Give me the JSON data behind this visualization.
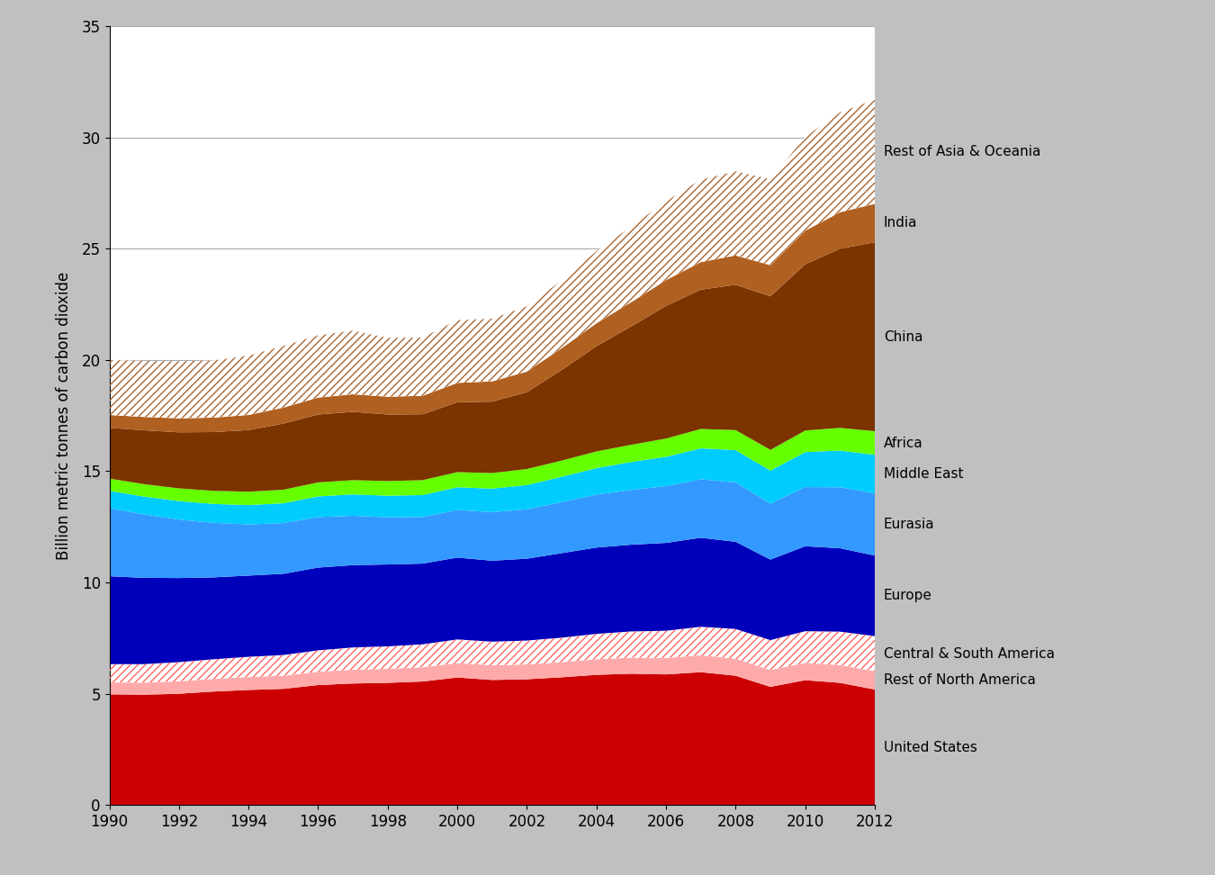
{
  "years": [
    1990,
    1991,
    1992,
    1993,
    1994,
    1995,
    1996,
    1997,
    1998,
    1999,
    2000,
    2001,
    2002,
    2003,
    2004,
    2005,
    2006,
    2007,
    2008,
    2009,
    2010,
    2011,
    2012
  ],
  "regions": [
    "United States",
    "Rest of North America",
    "Central & South America",
    "Europe",
    "Eurasia",
    "Middle East",
    "Africa",
    "China",
    "India",
    "Rest of Asia & Oceania"
  ],
  "data": {
    "United States": [
      4.97,
      4.95,
      5.0,
      5.1,
      5.17,
      5.22,
      5.39,
      5.46,
      5.49,
      5.55,
      5.73,
      5.62,
      5.65,
      5.74,
      5.85,
      5.9,
      5.87,
      5.97,
      5.81,
      5.31,
      5.61,
      5.49,
      5.19
    ],
    "Rest of North America": [
      0.54,
      0.55,
      0.56,
      0.57,
      0.58,
      0.59,
      0.6,
      0.62,
      0.63,
      0.64,
      0.65,
      0.66,
      0.67,
      0.68,
      0.7,
      0.72,
      0.74,
      0.76,
      0.77,
      0.76,
      0.78,
      0.8,
      0.82
    ],
    "Central & South America": [
      0.82,
      0.83,
      0.86,
      0.88,
      0.91,
      0.93,
      0.96,
      1.0,
      1.01,
      1.03,
      1.06,
      1.06,
      1.07,
      1.1,
      1.14,
      1.18,
      1.22,
      1.28,
      1.33,
      1.34,
      1.42,
      1.5,
      1.58
    ],
    "Europe": [
      3.95,
      3.88,
      3.78,
      3.68,
      3.65,
      3.65,
      3.72,
      3.7,
      3.68,
      3.63,
      3.68,
      3.64,
      3.68,
      3.8,
      3.88,
      3.9,
      3.95,
      4.0,
      3.92,
      3.62,
      3.82,
      3.75,
      3.62
    ],
    "Eurasia": [
      3.06,
      2.85,
      2.63,
      2.45,
      2.3,
      2.28,
      2.27,
      2.22,
      2.12,
      2.09,
      2.14,
      2.18,
      2.22,
      2.29,
      2.38,
      2.46,
      2.55,
      2.63,
      2.67,
      2.51,
      2.66,
      2.74,
      2.8
    ],
    "Middle East": [
      0.78,
      0.8,
      0.83,
      0.85,
      0.87,
      0.89,
      0.93,
      0.96,
      0.97,
      0.99,
      1.02,
      1.06,
      1.09,
      1.14,
      1.19,
      1.26,
      1.32,
      1.39,
      1.45,
      1.49,
      1.57,
      1.65,
      1.73
    ],
    "Africa": [
      0.55,
      0.56,
      0.57,
      0.59,
      0.6,
      0.61,
      0.63,
      0.64,
      0.66,
      0.67,
      0.68,
      0.7,
      0.72,
      0.73,
      0.75,
      0.77,
      0.82,
      0.87,
      0.9,
      0.93,
      0.97,
      1.02,
      1.06
    ],
    "China": [
      2.28,
      2.42,
      2.52,
      2.64,
      2.77,
      2.97,
      3.05,
      3.07,
      2.99,
      2.96,
      3.14,
      3.21,
      3.45,
      4.07,
      4.73,
      5.32,
      5.96,
      6.26,
      6.53,
      6.9,
      7.47,
      8.05,
      8.49
    ],
    "India": [
      0.58,
      0.6,
      0.63,
      0.65,
      0.68,
      0.72,
      0.76,
      0.79,
      0.8,
      0.83,
      0.87,
      0.91,
      0.93,
      0.98,
      1.03,
      1.09,
      1.16,
      1.24,
      1.32,
      1.4,
      1.51,
      1.64,
      1.73
    ],
    "Rest of Asia & Oceania": [
      2.47,
      2.52,
      2.56,
      2.57,
      2.67,
      2.77,
      2.8,
      2.86,
      2.65,
      2.62,
      2.82,
      2.82,
      2.93,
      3.05,
      3.24,
      3.4,
      3.54,
      3.71,
      3.78,
      3.87,
      4.22,
      4.49,
      4.68
    ]
  },
  "colors": {
    "United States": "#cc0000",
    "Rest of North America": "#ffaaaa",
    "Central & South America": "#ff6666",
    "Europe": "#0000bb",
    "Eurasia": "#3399ff",
    "Middle East": "#00ccff",
    "Africa": "#66ff00",
    "China": "#7b3300",
    "India": "#b06020",
    "Rest of Asia & Oceania": "#aa6633"
  },
  "hatch_base_colors": {
    "Central & South America": "#ffffff",
    "Rest of Asia & Oceania": "#ffffff"
  },
  "hatch_regions": [
    "Central & South America",
    "Rest of Asia & Oceania"
  ],
  "ylabel": "Billion metric tonnes of carbon dioxide",
  "ylim": [
    0,
    35
  ],
  "yticks": [
    0,
    5,
    10,
    15,
    20,
    25,
    30,
    35
  ],
  "background_color": "#c0c0c0",
  "plot_background": "#ffffff",
  "label_fontsize": 11,
  "tick_fontsize": 12,
  "ylabel_fontsize": 12
}
